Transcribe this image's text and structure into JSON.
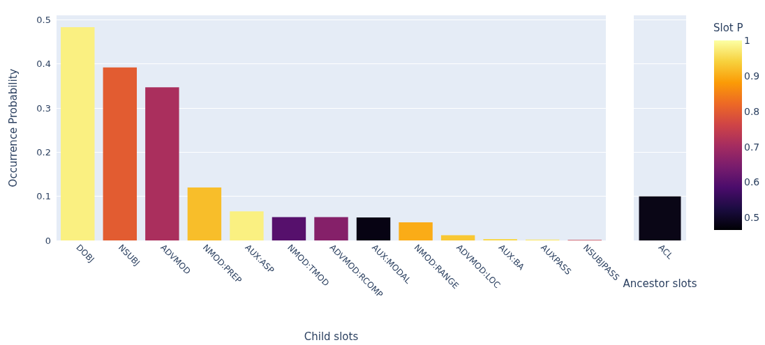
{
  "chart_data": [
    {
      "type": "bar",
      "xlabel": "Child slots",
      "ylabel": "Occurrence Probability",
      "categories": [
        "DOBJ",
        "NSUBJ",
        "ADVMOD",
        "NMOD:PREP",
        "AUX:ASP",
        "NMOD:TMOD",
        "ADVMOD:RCOMP",
        "AUX:MODAL",
        "NMOD:RANGE",
        "ADVMOD:LOC",
        "AUX:BA",
        "AUXPASS",
        "NSUBJPASS"
      ],
      "values": [
        0.483,
        0.392,
        0.347,
        0.12,
        0.066,
        0.053,
        0.053,
        0.052,
        0.041,
        0.012,
        0.003,
        0.002,
        0.001
      ],
      "cvalues": [
        0.98,
        0.8,
        0.71,
        0.92,
        0.98,
        0.6,
        0.66,
        0.48,
        0.9,
        0.93,
        0.95,
        0.97,
        0.75
      ],
      "clabel": "Slot P",
      "clim": [
        0.465,
        1
      ],
      "cticks": [
        0.5,
        0.6,
        0.7,
        0.8,
        0.9,
        1
      ],
      "ylim": [
        0,
        0.51
      ],
      "yticks": [
        0,
        0.1,
        0.2,
        0.3,
        0.4,
        0.5
      ],
      "grid": "y"
    },
    {
      "type": "bar",
      "xlabel": "Ancestor slots",
      "categories": [
        "ACL"
      ],
      "values": [
        0.1
      ],
      "colors": [
        "#0a0616"
      ],
      "ylim": [
        0,
        0.51
      ],
      "yticks": [
        0,
        0.1,
        0.2,
        0.3,
        0.4,
        0.5
      ],
      "grid": "y",
      "tick_labels": "x"
    }
  ]
}
